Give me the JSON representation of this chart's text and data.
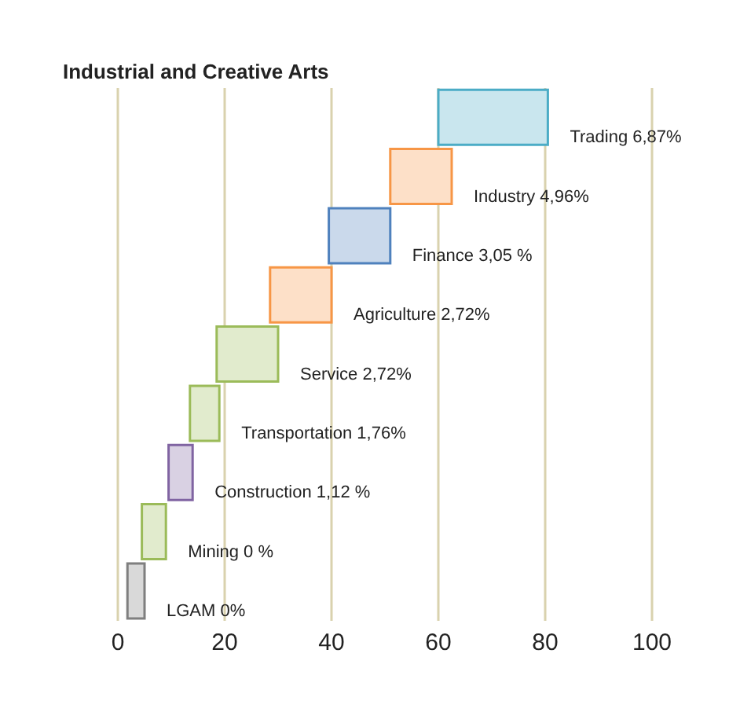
{
  "chart_data": {
    "type": "bar",
    "orientation": "horizontal",
    "title": "Industrial and Creative Arts",
    "categories": [
      "Trading  6,87%",
      "Industry 4,96%",
      "Finance 3,05 %",
      "Agriculture  2,72%",
      "Service  2,72%",
      "Transportation  1,76%",
      "Construction 1,12 %",
      "Mining 0 %",
      "LGAM  0%"
    ],
    "base": [
      60,
      51,
      39.5,
      28.5,
      18.5,
      13.5,
      9.5,
      4.5,
      1.8
    ],
    "values": [
      20.5,
      11.5,
      11.5,
      11.5,
      11.5,
      5.5,
      4.5,
      4.5,
      3.2
    ],
    "colors": [
      "#4bacc6",
      "#f79646",
      "#4f81bd",
      "#f79646",
      "#9bbb59",
      "#9bbb59",
      "#8064a2",
      "#9bbb59",
      "#7f7f7f"
    ],
    "xlim": [
      0,
      100
    ],
    "xticks": [
      0,
      20,
      40,
      60,
      80,
      100
    ],
    "grid": "x",
    "tick_labels": "x"
  }
}
